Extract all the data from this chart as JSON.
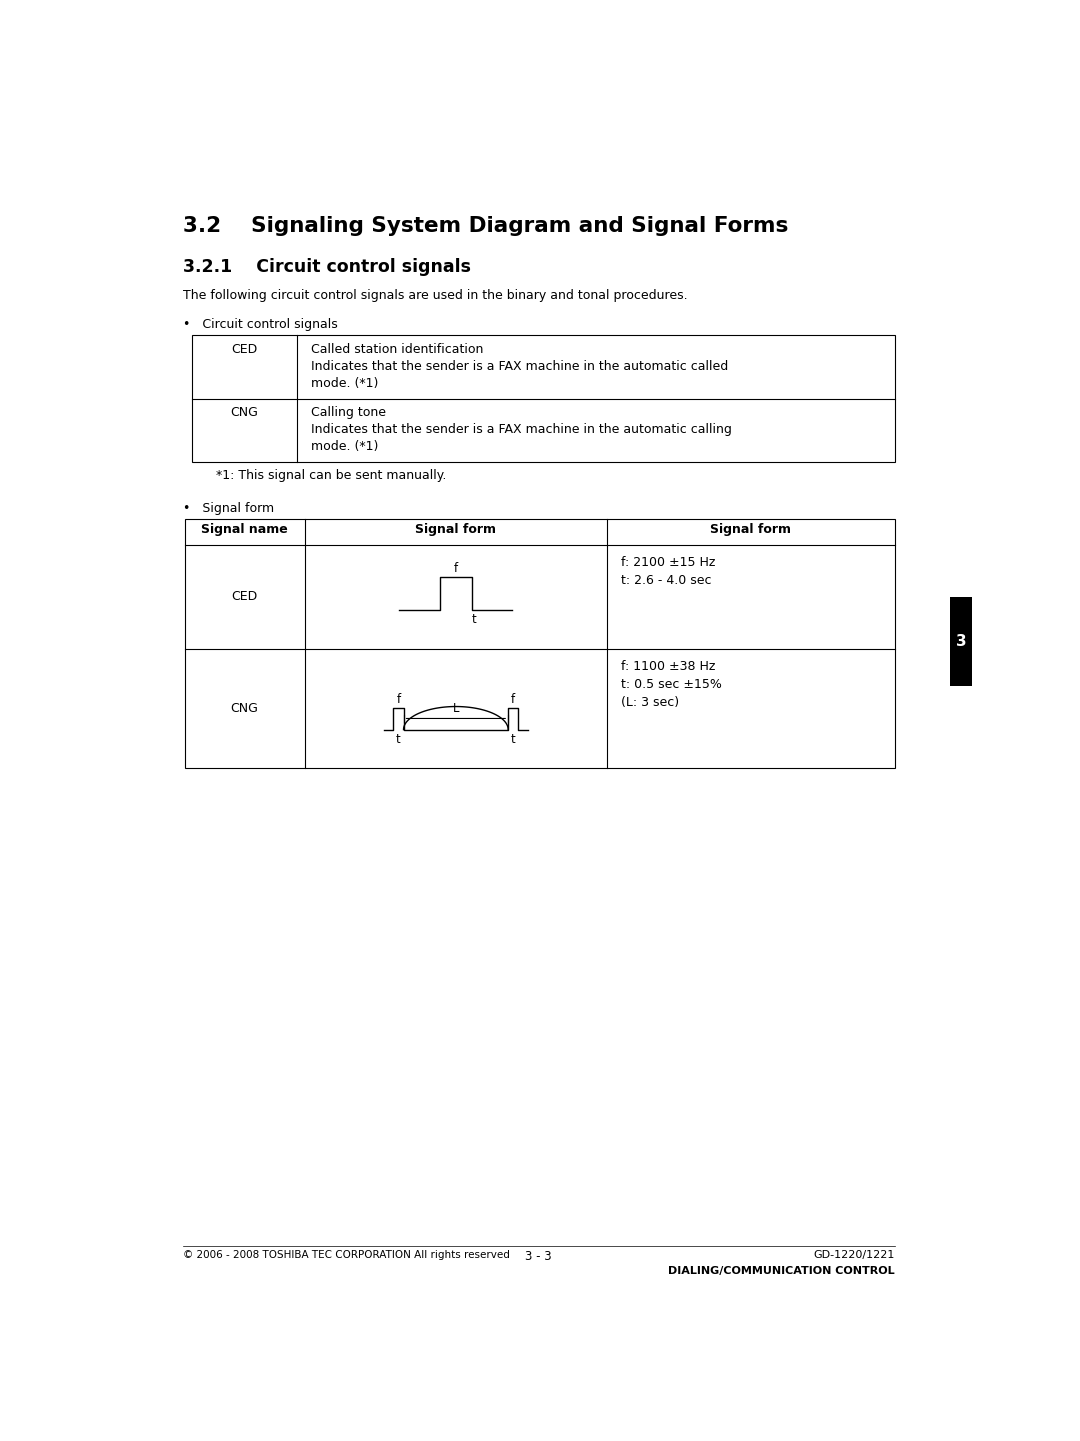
{
  "title_32": "3.2    Signaling System Diagram and Signal Forms",
  "title_321": "3.2.1    Circuit control signals",
  "intro_text": "The following circuit control signals are used in the binary and tonal procedures.",
  "bullet1": "•   Circuit control signals",
  "table1_rows": [
    {
      "signal": "CED",
      "description": "Called station identification\nIndicates that the sender is a FAX machine in the automatic called\nmode. (*1)"
    },
    {
      "signal": "CNG",
      "description": "Calling tone\nIndicates that the sender is a FAX machine in the automatic calling\nmode. (*1)"
    }
  ],
  "footnote": "*1: This signal can be sent manually.",
  "bullet2": "•   Signal form",
  "table2_header": [
    "Signal name",
    "Signal form",
    "Signal form"
  ],
  "table2_rows": [
    {
      "signal": "CED",
      "signal_form_text": "f: 2100 ±15 Hz\nt: 2.6 - 4.0 sec"
    },
    {
      "signal": "CNG",
      "signal_form_text": "f: 1100 ±38 Hz\nt: 0.5 sec ±15%\n(L: 3 sec)"
    }
  ],
  "footer_left": "© 2006 - 2008 TOSHIBA TEC CORPORATION All rights reserved",
  "footer_center": "3 - 3",
  "footer_right1": "GD-1220/1221",
  "footer_right2": "DIALING/COMMUNICATION CONTROL",
  "sidebar_text": "3",
  "background_color": "#ffffff",
  "border_color": "#000000",
  "sidebar_color": "#000000",
  "text_color": "#000000"
}
